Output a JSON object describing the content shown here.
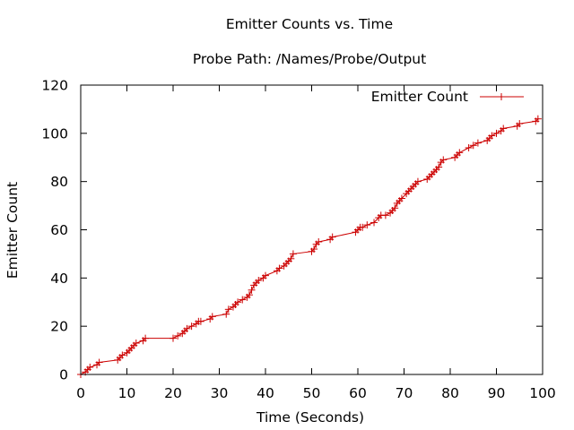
{
  "chart_data": {
    "type": "line",
    "title": "Emitter Counts vs. Time",
    "subtitle": "Probe Path: /Names/Probe/Output",
    "xlabel": "Time (Seconds)",
    "ylabel": "Emitter Count",
    "xlim": [
      0,
      100
    ],
    "ylim": [
      0,
      120
    ],
    "xticks": [
      0,
      10,
      20,
      30,
      40,
      50,
      60,
      70,
      80,
      90,
      100
    ],
    "yticks": [
      0,
      20,
      40,
      60,
      80,
      100,
      120
    ],
    "grid": false,
    "legend_position": "top-right",
    "line_color": "#cc0000",
    "series": [
      {
        "name": "Emitter Count",
        "x": [
          0,
          1,
          1.5,
          2,
          3.5,
          4,
          8,
          8.5,
          9,
          10,
          10.5,
          11,
          11.5,
          12,
          13.5,
          14,
          20,
          21,
          22,
          22.5,
          23,
          24,
          25,
          25.5,
          26,
          28,
          28.5,
          31.5,
          32,
          33,
          33.5,
          34,
          35,
          36,
          36.5,
          37,
          37.5,
          38,
          38.5,
          39.5,
          40,
          42.5,
          43,
          44,
          44.5,
          45,
          45.5,
          46,
          50,
          50.5,
          51,
          51.5,
          54,
          54.5,
          59.5,
          60,
          60.5,
          61,
          62,
          63.5,
          64.5,
          65,
          66,
          67,
          67.5,
          68,
          68.5,
          69,
          69.5,
          70.5,
          71,
          71.5,
          72,
          72.5,
          73,
          75,
          75.5,
          76,
          76.5,
          77,
          77.5,
          78,
          78.5,
          81,
          81.5,
          82,
          84,
          85,
          86,
          88,
          88.5,
          89,
          90,
          91,
          91.5,
          94.5,
          95,
          98.5,
          99
        ],
        "y": [
          0,
          1,
          2,
          3,
          4,
          5,
          6,
          7,
          8,
          9,
          10,
          11,
          12,
          13,
          14,
          15,
          15,
          16,
          17,
          18,
          19,
          20,
          21,
          22,
          22,
          23,
          24,
          25,
          27,
          28,
          29,
          30,
          31,
          32,
          33,
          35,
          37,
          38,
          39,
          40,
          41,
          43,
          44,
          45,
          46,
          47,
          48,
          50,
          51,
          52,
          54,
          55,
          56,
          57,
          59,
          60,
          61,
          61,
          62,
          63,
          65,
          66,
          66,
          67,
          68,
          69,
          71,
          72,
          73,
          75,
          76,
          77,
          78,
          79,
          80,
          81,
          82,
          83,
          84,
          85,
          86,
          88,
          89,
          90,
          91,
          92,
          94,
          95,
          96,
          97,
          98,
          99,
          100,
          101,
          102,
          103,
          104,
          105,
          106
        ]
      }
    ]
  }
}
